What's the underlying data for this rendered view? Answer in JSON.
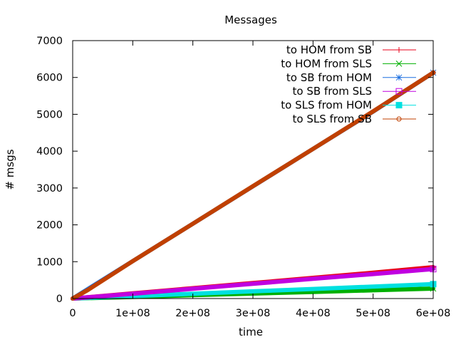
{
  "chart_data": {
    "type": "line",
    "title": "Messages",
    "xlabel": "time",
    "ylabel": "# msgs",
    "xlim": [
      0,
      600000000
    ],
    "ylim": [
      0,
      7000
    ],
    "xticks": [
      0,
      100000000,
      200000000,
      300000000,
      400000000,
      500000000,
      600000000
    ],
    "xtick_labels": [
      "0",
      "1e+08",
      "2e+08",
      "3e+08",
      "4e+08",
      "5e+08",
      "6e+08"
    ],
    "yticks": [
      0,
      1000,
      2000,
      3000,
      4000,
      5000,
      6000,
      7000
    ],
    "ytick_labels": [
      "0",
      "1000",
      "2000",
      "3000",
      "4000",
      "5000",
      "6000",
      "7000"
    ],
    "grid": false,
    "legend_position": "top-right",
    "series": [
      {
        "name": "to HOM from SB",
        "color": "#e8001a",
        "marker": "plus",
        "x": [
          0,
          100000000,
          200000000,
          300000000,
          400000000,
          500000000,
          600000000
        ],
        "y": [
          0,
          140,
          280,
          420,
          560,
          700,
          850
        ]
      },
      {
        "name": "to HOM from SLS",
        "color": "#00b000",
        "marker": "cross",
        "x": [
          0,
          100000000,
          200000000,
          300000000,
          400000000,
          500000000,
          600000000
        ],
        "y": [
          0,
          45,
          90,
          135,
          180,
          225,
          270
        ]
      },
      {
        "name": "to SB from HOM",
        "color": "#1a6ee0",
        "marker": "star",
        "x": [
          0,
          100000000,
          200000000,
          300000000,
          400000000,
          500000000,
          600000000
        ],
        "y": [
          0,
          1015,
          2030,
          3045,
          4060,
          5075,
          6130
        ]
      },
      {
        "name": "to SB from SLS",
        "color": "#c000e0",
        "marker": "square-open",
        "x": [
          0,
          100000000,
          200000000,
          300000000,
          400000000,
          500000000,
          600000000
        ],
        "y": [
          0,
          130,
          265,
          400,
          535,
          665,
          800
        ]
      },
      {
        "name": "to SLS from HOM",
        "color": "#00e0e0",
        "marker": "square-filled",
        "x": [
          0,
          100000000,
          200000000,
          300000000,
          400000000,
          500000000,
          600000000
        ],
        "y": [
          0,
          65,
          130,
          195,
          260,
          325,
          390
        ]
      },
      {
        "name": "to SLS from SB",
        "color": "#c04000",
        "marker": "circle-open",
        "x": [
          0,
          25000000,
          100000000,
          200000000,
          300000000,
          400000000,
          500000000,
          600000000
        ],
        "y": [
          0,
          230,
          1015,
          2030,
          3050,
          4060,
          5080,
          6130
        ]
      }
    ]
  }
}
